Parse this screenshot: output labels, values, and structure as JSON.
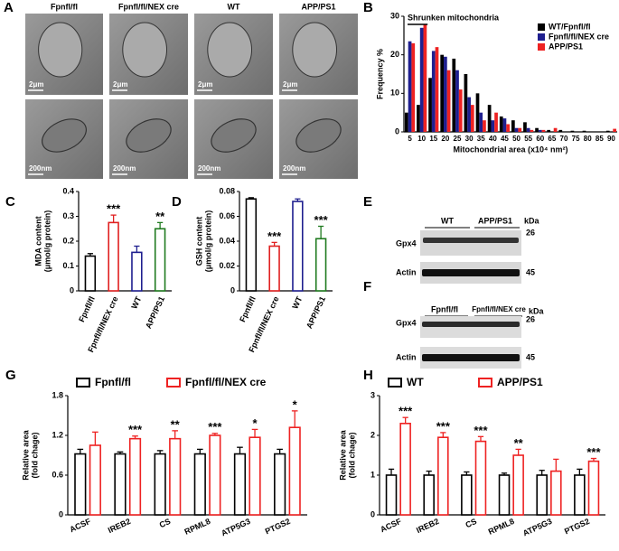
{
  "panel_labels": [
    "A",
    "B",
    "C",
    "D",
    "E",
    "F",
    "G",
    "H"
  ],
  "em": {
    "groups": [
      "Fpnfl/fl",
      "Fpnfl/fl/NEX cre",
      "WT",
      "APP/PS1"
    ],
    "scale_top": [
      "2μm",
      "2μm",
      "2μm",
      "2μm"
    ],
    "scale_bottom": [
      "200nm",
      "200nm",
      "200nm",
      "200nm"
    ]
  },
  "blot_e": {
    "groups": [
      "WT",
      "APP/PS1"
    ],
    "unit": "kDa",
    "proteins": [
      "Gpx4",
      "Actin"
    ],
    "sizes": [
      "26",
      "45"
    ]
  },
  "blot_f": {
    "groups": [
      "Fpnfl/fl",
      "Fpnfl/fl/NEX cre"
    ],
    "unit": "kDa",
    "proteins": [
      "Gpx4",
      "Actin"
    ],
    "sizes": [
      "26",
      "45"
    ]
  },
  "chart_data": [
    {
      "type": "bar",
      "bar_style": "filled",
      "legend": "upper right",
      "annotation": "Shrunken mitochondria",
      "ylabel": [
        "Frequency %"
      ],
      "xlabel": "Mitochondrial area (x10⁴ nm²)",
      "categories": [
        "5",
        "10",
        "15",
        "20",
        "25",
        "30",
        "35",
        "40",
        "45",
        "50",
        "55",
        "60",
        "65",
        "70",
        "75",
        "80",
        "85",
        "90"
      ],
      "series": [
        {
          "name": "WT/Fpnfl/fl",
          "color": "#000000",
          "values": [
            5,
            7,
            14,
            20,
            19,
            15,
            10,
            7,
            4,
            3,
            2.5,
            1,
            0.5,
            0.5,
            0.3,
            0.3,
            0,
            0.3
          ]
        },
        {
          "name": "Fpnfl/fl/NEX cre",
          "color": "#1f1f8f",
          "values": [
            23.5,
            27,
            21,
            19.5,
            16,
            9,
            5,
            3,
            3.5,
            1,
            1,
            0.5,
            0,
            0,
            0,
            0,
            0,
            0
          ]
        },
        {
          "name": "APP/PS1",
          "color": "#ee2222",
          "values": [
            23,
            28,
            22,
            16,
            11,
            7,
            3,
            5,
            2,
            1,
            0.5,
            0.5,
            1,
            0,
            0,
            0,
            0,
            0.8
          ]
        }
      ],
      "ylim": [
        0,
        30
      ],
      "yticks": [
        0,
        10,
        20,
        30
      ]
    },
    {
      "type": "bar",
      "bar_style": "outline",
      "ylabel": [
        "MDA content",
        "(μmol/g protein)"
      ],
      "categories": [
        "Fpnfl/fl",
        "Fpnfl/fl/NEX cre",
        "WT",
        "APP/PS1"
      ],
      "colors": [
        "#000000",
        "#e02020",
        "#1f1f8f",
        "#1f7a1f"
      ],
      "series": [
        {
          "values": [
            0.14,
            0.275,
            0.155,
            0.25
          ],
          "errors": [
            0.01,
            0.03,
            0.025,
            0.025
          ]
        }
      ],
      "annotations": [
        null,
        "***",
        null,
        "**"
      ],
      "ylim": [
        0,
        0.4
      ],
      "yticks": [
        0,
        0.1,
        0.2,
        0.3,
        0.4
      ]
    },
    {
      "type": "bar",
      "bar_style": "outline",
      "ylabel": [
        "GSH content",
        "(μmol/g protein)"
      ],
      "categories": [
        "Fpnfl/fl",
        "Fpnfl/fl/NEX cre",
        "WT",
        "APP/PS1"
      ],
      "colors": [
        "#000000",
        "#e02020",
        "#1f1f8f",
        "#1f7a1f"
      ],
      "series": [
        {
          "values": [
            0.074,
            0.036,
            0.072,
            0.042
          ],
          "errors": [
            0.001,
            0.003,
            0.002,
            0.01
          ]
        }
      ],
      "annotations": [
        null,
        "***",
        null,
        "***"
      ],
      "ylim": [
        0,
        0.08
      ],
      "yticks": [
        0,
        0.02,
        0.04,
        0.06,
        0.08
      ]
    },
    {
      "type": "bar",
      "bar_style": "outline",
      "legend": "top",
      "ylabel": [
        "Relative area",
        "(fold chage)"
      ],
      "categories": [
        "ACSF",
        "IREB2",
        "CS",
        "RPML8",
        "ATP5G3",
        "PTGS2"
      ],
      "series": [
        {
          "name": "Fpnfl/fl",
          "color": "#000000",
          "values": [
            0.92,
            0.92,
            0.92,
            0.92,
            0.92,
            0.92
          ],
          "errors": [
            0.07,
            0.03,
            0.05,
            0.07,
            0.1,
            0.07
          ]
        },
        {
          "name": "Fpnfl/fl/NEX cre",
          "color": "#ee2222",
          "values": [
            1.05,
            1.15,
            1.15,
            1.2,
            1.17,
            1.32
          ],
          "errors": [
            0.2,
            0.04,
            0.12,
            0.03,
            0.12,
            0.25
          ]
        }
      ],
      "annotations": [
        null,
        "***",
        "**",
        "***",
        "*",
        "*"
      ],
      "ylim": [
        0,
        1.8
      ],
      "yticks": [
        0,
        0.6,
        1.2,
        1.8
      ]
    },
    {
      "type": "bar",
      "bar_style": "outline",
      "legend": "top",
      "ylabel": [
        "Relative area",
        "(fold chage)"
      ],
      "categories": [
        "ACSF",
        "IREB2",
        "CS",
        "RPML8",
        "ATP5G3",
        "PTGS2"
      ],
      "series": [
        {
          "name": "WT",
          "color": "#000000",
          "values": [
            1.0,
            1.0,
            1.0,
            1.0,
            1.0,
            1.0
          ],
          "errors": [
            0.15,
            0.1,
            0.08,
            0.05,
            0.12,
            0.15
          ]
        },
        {
          "name": "APP/PS1",
          "color": "#ee2222",
          "values": [
            2.3,
            1.95,
            1.85,
            1.5,
            1.1,
            1.35
          ],
          "errors": [
            0.15,
            0.12,
            0.12,
            0.15,
            0.3,
            0.07
          ]
        }
      ],
      "annotations": [
        "***",
        "***",
        "***",
        "**",
        null,
        "***"
      ],
      "ylim": [
        0,
        3
      ],
      "yticks": [
        0,
        1,
        2,
        3
      ]
    }
  ]
}
